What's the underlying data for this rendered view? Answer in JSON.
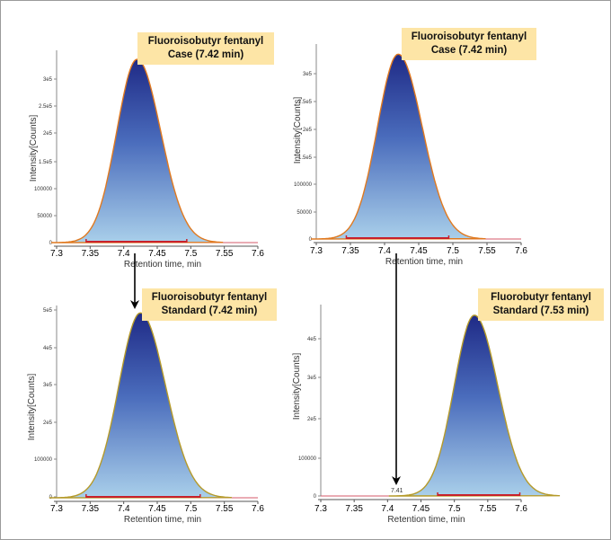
{
  "chart_data": [
    {
      "id": "top-left",
      "type": "area",
      "callout": [
        "Fluoroisobutyr fentanyl",
        "Case (7.42 min)"
      ],
      "xlabel": "Retention time, min",
      "ylabel": "Intensity[Counts]",
      "x_ticks": [
        "7.3",
        "7.35",
        "7.4",
        "7.45",
        "7.5",
        "7.55",
        "7.6"
      ],
      "y_ticks": [
        "0",
        "50000",
        "100000",
        "1.5e5",
        "2e5",
        "2.5e5",
        "3e5"
      ],
      "xlim": [
        7.3,
        7.6
      ],
      "ylim": [
        0,
        350000
      ],
      "peak": {
        "center": 7.42,
        "height": 340000,
        "width": 0.032
      },
      "baseline": [
        7.344,
        7.494
      ]
    },
    {
      "id": "top-right",
      "type": "area",
      "callout": [
        "Fluoroisobutyr fentanyl",
        "Case (7.42 min)"
      ],
      "xlabel": "Retention time, min",
      "ylabel": "Intensity[Counts]",
      "x_ticks": [
        "7.3",
        "7.35",
        "7.4",
        "7.45",
        "7.5",
        "7.55",
        "7.6"
      ],
      "y_ticks": [
        "0",
        "50000",
        "100000",
        "1.5e5",
        "2e5",
        "2.5e5",
        "3e5"
      ],
      "xlim": [
        7.3,
        7.6
      ],
      "ylim": [
        0,
        350000
      ],
      "peak": {
        "center": 7.42,
        "height": 338000,
        "width": 0.032
      },
      "baseline": [
        7.344,
        7.494
      ]
    },
    {
      "id": "bottom-left",
      "type": "area",
      "callout": [
        "Fluoroisobutyr fentanyl",
        "Standard (7.42 min)"
      ],
      "xlabel": "Retention time, min",
      "ylabel": "Intensity[Counts]",
      "x_ticks": [
        "7.3",
        "7.35",
        "7.4",
        "7.45",
        "7.5",
        "7.55",
        "7.6"
      ],
      "y_ticks": [
        "0",
        "100000",
        "2e5",
        "3e5",
        "4e5",
        "5e5"
      ],
      "xlim": [
        7.3,
        7.6
      ],
      "ylim": [
        0,
        500000
      ],
      "peak": {
        "center": 7.425,
        "height": 490000,
        "width": 0.034
      },
      "baseline": [
        7.344,
        7.514
      ]
    },
    {
      "id": "bottom-right",
      "type": "area",
      "callout": [
        "Fluorobutyr fentanyl",
        "Standard (7.53 min)"
      ],
      "xlabel": "Retention time, min",
      "ylabel": "Intensity[Counts]",
      "x_ticks": [
        "7.3",
        "7.35",
        "7.4",
        "7.45",
        "7.5",
        "7.55",
        "7.6"
      ],
      "y_ticks": [
        "0",
        "100000",
        "2e5",
        "3e5",
        "4e5"
      ],
      "xlim": [
        7.3,
        7.6
      ],
      "ylim": [
        0,
        480000
      ],
      "peak": {
        "center": 7.53,
        "height": 462000,
        "width": 0.032
      },
      "baseline": [
        7.475,
        7.598
      ],
      "annotation": {
        "text": "7.41",
        "x": 7.41
      }
    }
  ],
  "colors": {
    "peak_top": "#1f2a86",
    "peak_bottom": "#a9cfea",
    "outline_case": "#e0791f",
    "outline_standard": "#b59a2a",
    "baseline": "#c8202a",
    "trace": "#d45a6a",
    "callout_bg": "#fde5a6"
  }
}
